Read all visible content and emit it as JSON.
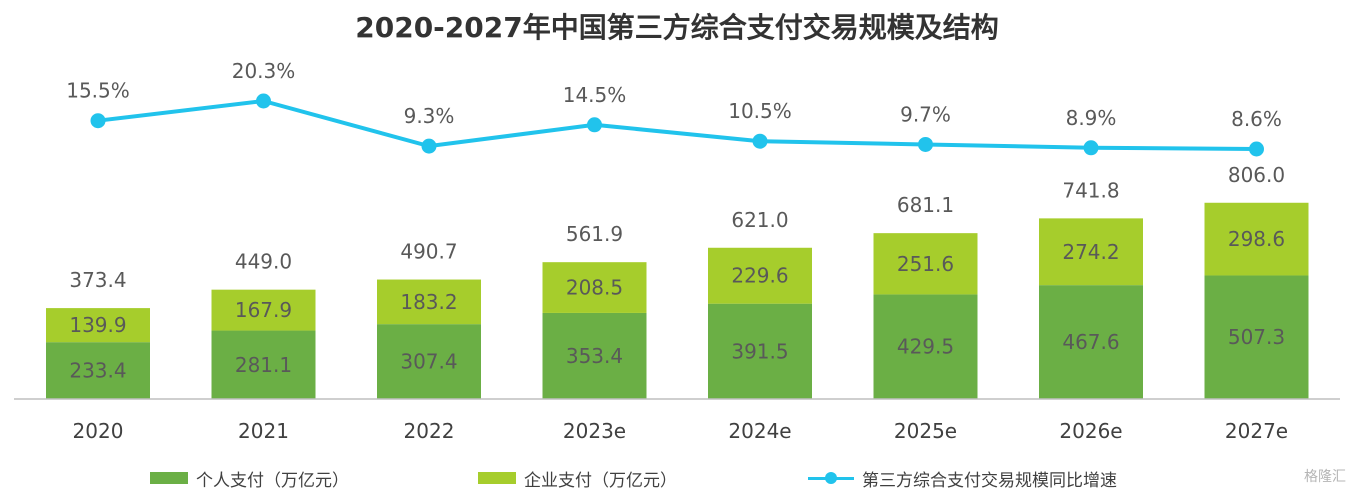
{
  "title": "2020-2027年中国第三方综合支付交易规模及结构",
  "colors": {
    "personal": "#6BAF45",
    "enterprise": "#A6CD2C",
    "growth": "#21C3EC",
    "text": "#595959",
    "axis": "#BFBFBF"
  },
  "chart_data": {
    "type": "bar",
    "stacked": true,
    "categories": [
      "2020",
      "2021",
      "2022",
      "2023e",
      "2024e",
      "2025e",
      "2026e",
      "2027e"
    ],
    "series": [
      {
        "name": "个人支付（万亿元）",
        "values": [
          233.4,
          281.1,
          307.4,
          353.4,
          391.5,
          429.5,
          467.6,
          507.3
        ]
      },
      {
        "name": "企业支付（万亿元）",
        "values": [
          139.9,
          167.9,
          183.2,
          208.5,
          229.6,
          251.6,
          274.2,
          298.6
        ]
      }
    ],
    "totals": [
      "373.4",
      "449.0",
      "490.7",
      "561.9",
      "621.0",
      "681.1",
      "741.8",
      "806.0"
    ],
    "line_series": {
      "name": "第三方综合支付交易规模同比增速",
      "values": [
        15.5,
        20.3,
        9.3,
        14.5,
        10.5,
        9.7,
        8.9,
        8.6
      ],
      "labels": [
        "15.5%",
        "20.3%",
        "9.3%",
        "14.5%",
        "10.5%",
        "9.7%",
        "8.9%",
        "8.6%"
      ]
    },
    "legend_position": "bottom"
  },
  "legend": {
    "personal": "个人支付（万亿元）",
    "enterprise": "企业支付（万亿元）",
    "growth": "第三方综合支付交易规模同比增速"
  },
  "watermark": "格隆汇"
}
